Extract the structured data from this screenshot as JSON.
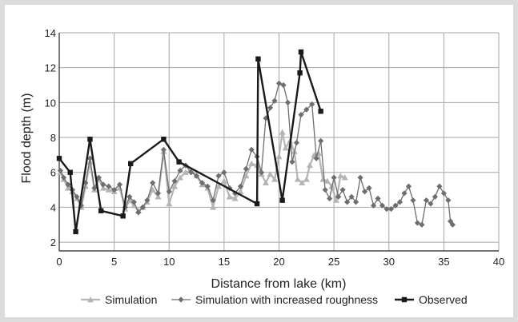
{
  "chart_data": {
    "type": "line",
    "title": "",
    "xlabel": "Distance from lake (km)",
    "ylabel": "Flood depth (m)",
    "xlim": [
      0,
      40
    ],
    "ylim": [
      1.5,
      14
    ],
    "x_ticks": [
      0,
      5,
      10,
      15,
      20,
      25,
      30,
      35,
      40
    ],
    "y_ticks": [
      2,
      4,
      6,
      8,
      10,
      12,
      14
    ],
    "grid": true,
    "legend_position": "bottom",
    "series": [
      {
        "name": "Simulation",
        "color": "#b4b4b4",
        "marker": "triangle",
        "points": [
          [
            0.1,
            6.0
          ],
          [
            0.4,
            5.6
          ],
          [
            0.8,
            5.1
          ],
          [
            1.2,
            4.9
          ],
          [
            1.6,
            4.5
          ],
          [
            2.0,
            4.0
          ],
          [
            2.4,
            5.2
          ],
          [
            2.8,
            6.6
          ],
          [
            3.2,
            5.0
          ],
          [
            3.6,
            5.6
          ],
          [
            4.0,
            5.1
          ],
          [
            4.5,
            5.0
          ],
          [
            5.0,
            4.9
          ],
          [
            5.5,
            5.1
          ],
          [
            6.0,
            3.9
          ],
          [
            6.4,
            4.4
          ],
          [
            6.8,
            4.1
          ],
          [
            7.2,
            3.8
          ],
          [
            7.6,
            4.0
          ],
          [
            8.0,
            4.3
          ],
          [
            8.5,
            5.0
          ],
          [
            9.0,
            4.6
          ],
          [
            9.5,
            7.2
          ],
          [
            10.0,
            4.2
          ],
          [
            10.5,
            5.2
          ],
          [
            11.0,
            5.7
          ],
          [
            11.5,
            6.0
          ],
          [
            12.0,
            6.1
          ],
          [
            12.5,
            5.8
          ],
          [
            13.0,
            5.3
          ],
          [
            13.5,
            5.1
          ],
          [
            14.0,
            4.0
          ],
          [
            14.5,
            5.2
          ],
          [
            15.0,
            5.5
          ],
          [
            15.5,
            4.6
          ],
          [
            16.0,
            4.5
          ],
          [
            16.5,
            4.9
          ],
          [
            17.0,
            5.8
          ],
          [
            17.5,
            6.5
          ],
          [
            18.0,
            6.4
          ],
          [
            18.4,
            5.9
          ],
          [
            18.8,
            5.4
          ],
          [
            19.2,
            5.9
          ],
          [
            19.6,
            5.6
          ],
          [
            20.0,
            6.9
          ],
          [
            20.3,
            8.3
          ],
          [
            20.6,
            7.4
          ],
          [
            21.0,
            7.8
          ],
          [
            21.4,
            7.2
          ],
          [
            21.7,
            5.6
          ],
          [
            22.1,
            5.4
          ],
          [
            22.5,
            5.6
          ],
          [
            22.8,
            6.4
          ],
          [
            23.2,
            7.0
          ],
          [
            23.6,
            7.1
          ],
          [
            24.0,
            5.6
          ],
          [
            24.4,
            5.5
          ],
          [
            24.8,
            5.2
          ],
          [
            25.2,
            4.4
          ],
          [
            25.6,
            5.8
          ],
          [
            26.0,
            5.7
          ]
        ]
      },
      {
        "name": "Simulation with increased roughness",
        "color": "#6e6e6e",
        "marker": "diamond",
        "points": [
          [
            0.1,
            6.1
          ],
          [
            0.4,
            5.7
          ],
          [
            0.8,
            5.3
          ],
          [
            1.2,
            5.0
          ],
          [
            1.6,
            4.6
          ],
          [
            2.0,
            4.1
          ],
          [
            2.4,
            5.4
          ],
          [
            2.8,
            6.8
          ],
          [
            3.2,
            5.1
          ],
          [
            3.6,
            5.7
          ],
          [
            4.0,
            5.3
          ],
          [
            4.5,
            5.2
          ],
          [
            5.0,
            5.0
          ],
          [
            5.5,
            5.3
          ],
          [
            6.0,
            4.0
          ],
          [
            6.4,
            4.6
          ],
          [
            6.8,
            4.3
          ],
          [
            7.2,
            3.7
          ],
          [
            7.6,
            4.0
          ],
          [
            8.0,
            4.4
          ],
          [
            8.5,
            5.4
          ],
          [
            9.0,
            4.8
          ],
          [
            9.5,
            7.3
          ],
          [
            10.0,
            4.9
          ],
          [
            10.5,
            5.5
          ],
          [
            11.0,
            6.1
          ],
          [
            11.5,
            6.4
          ],
          [
            12.0,
            6.0
          ],
          [
            12.5,
            5.8
          ],
          [
            13.0,
            5.4
          ],
          [
            13.5,
            5.2
          ],
          [
            14.0,
            4.4
          ],
          [
            14.5,
            5.8
          ],
          [
            15.0,
            6.0
          ],
          [
            15.5,
            5.1
          ],
          [
            16.0,
            4.8
          ],
          [
            16.5,
            5.2
          ],
          [
            17.0,
            6.2
          ],
          [
            17.5,
            7.3
          ],
          [
            18.0,
            6.9
          ],
          [
            18.4,
            6.0
          ],
          [
            18.8,
            9.1
          ],
          [
            19.2,
            9.7
          ],
          [
            19.6,
            10.1
          ],
          [
            20.0,
            11.1
          ],
          [
            20.4,
            11.0
          ],
          [
            20.8,
            10.0
          ],
          [
            21.2,
            6.6
          ],
          [
            21.6,
            7.7
          ],
          [
            22.0,
            9.3
          ],
          [
            22.5,
            9.6
          ],
          [
            23.0,
            9.9
          ],
          [
            23.4,
            6.8
          ],
          [
            23.8,
            7.8
          ],
          [
            24.2,
            5.0
          ],
          [
            24.6,
            4.5
          ],
          [
            25.0,
            5.7
          ],
          [
            25.4,
            4.6
          ],
          [
            25.8,
            5.0
          ],
          [
            26.2,
            4.3
          ],
          [
            26.6,
            4.6
          ],
          [
            27.0,
            4.3
          ],
          [
            27.4,
            5.7
          ],
          [
            27.8,
            4.9
          ],
          [
            28.2,
            5.1
          ],
          [
            28.6,
            4.1
          ],
          [
            29.0,
            4.5
          ],
          [
            29.4,
            4.1
          ],
          [
            29.8,
            3.9
          ],
          [
            30.2,
            3.9
          ],
          [
            30.6,
            4.1
          ],
          [
            31.0,
            4.3
          ],
          [
            31.4,
            4.8
          ],
          [
            31.8,
            5.2
          ],
          [
            32.2,
            4.4
          ],
          [
            32.6,
            3.1
          ],
          [
            33.0,
            3.0
          ],
          [
            33.4,
            4.4
          ],
          [
            33.8,
            4.2
          ],
          [
            34.2,
            4.6
          ],
          [
            34.6,
            5.2
          ],
          [
            35.0,
            4.8
          ],
          [
            35.4,
            4.4
          ],
          [
            35.6,
            3.2
          ],
          [
            35.8,
            3.0
          ]
        ]
      },
      {
        "name": "Observed",
        "color": "#1a1a1a",
        "marker": "square",
        "points": [
          [
            0.0,
            6.8
          ],
          [
            1.0,
            6.0
          ],
          [
            1.5,
            2.6
          ],
          [
            2.8,
            7.9
          ],
          [
            3.8,
            3.8
          ],
          [
            5.8,
            3.5
          ],
          [
            6.5,
            6.5
          ],
          [
            9.5,
            7.9
          ],
          [
            10.9,
            6.6
          ],
          [
            18.0,
            4.2
          ],
          [
            18.1,
            12.5
          ],
          [
            20.3,
            4.4
          ],
          [
            21.9,
            11.7
          ],
          [
            22.0,
            12.9
          ],
          [
            23.8,
            9.5
          ]
        ]
      }
    ]
  }
}
